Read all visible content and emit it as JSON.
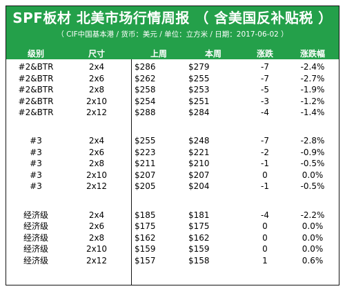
{
  "title": "SPF板材 北美市场行情周报 （ 含美国反补贴税 ）",
  "subtitle": "（ CIF中国基本港 / 货币：美元 / 单位：立方米 / 日期：2017-06-02 ）",
  "columns": [
    "级别",
    "尺寸",
    "上周",
    "本周",
    "涨跌",
    "涨跌幅"
  ],
  "groups": [
    {
      "rows": [
        [
          "#2&BTR",
          "2x4",
          "$286",
          "$279",
          "-7",
          "-2.4%"
        ],
        [
          "#2&BTR",
          "2x6",
          "$262",
          "$255",
          "-7",
          "-2.7%"
        ],
        [
          "#2&BTR",
          "2x8",
          "$258",
          "$253",
          "-5",
          "-1.9%"
        ],
        [
          "#2&BTR",
          "2x10",
          "$254",
          "$251",
          "-3",
          "-1.2%"
        ],
        [
          "#2&BTR",
          "2x12",
          "$288",
          "$284",
          "-4",
          "-1.4%"
        ]
      ]
    },
    {
      "rows": [
        [
          "#3",
          "2x4",
          "$255",
          "$248",
          "-7",
          "-2.8%"
        ],
        [
          "#3",
          "2x6",
          "$223",
          "$221",
          "-2",
          "-0.9%"
        ],
        [
          "#3",
          "2x8",
          "$211",
          "$210",
          "-1",
          "-0.5%"
        ],
        [
          "#3",
          "2x10",
          "$207",
          "$207",
          "0",
          "0.0%"
        ],
        [
          "#3",
          "2x12",
          "$205",
          "$204",
          "-1",
          "-0.5%"
        ]
      ]
    },
    {
      "rows": [
        [
          "经济级",
          "2x4",
          "$185",
          "$181",
          "-4",
          "-2.2%"
        ],
        [
          "经济级",
          "2x6",
          "$175",
          "$175",
          "0",
          "0.0%"
        ],
        [
          "经济级",
          "2x8",
          "$162",
          "$162",
          "0",
          "0.0%"
        ],
        [
          "经济级",
          "2x10",
          "$159",
          "$159",
          "0",
          "0.0%"
        ],
        [
          "经济级",
          "2x12",
          "$157",
          "$158",
          "1",
          "0.6%"
        ]
      ]
    }
  ],
  "colors": {
    "header_bg": "#24a04a",
    "header_text": "#ffffff"
  }
}
